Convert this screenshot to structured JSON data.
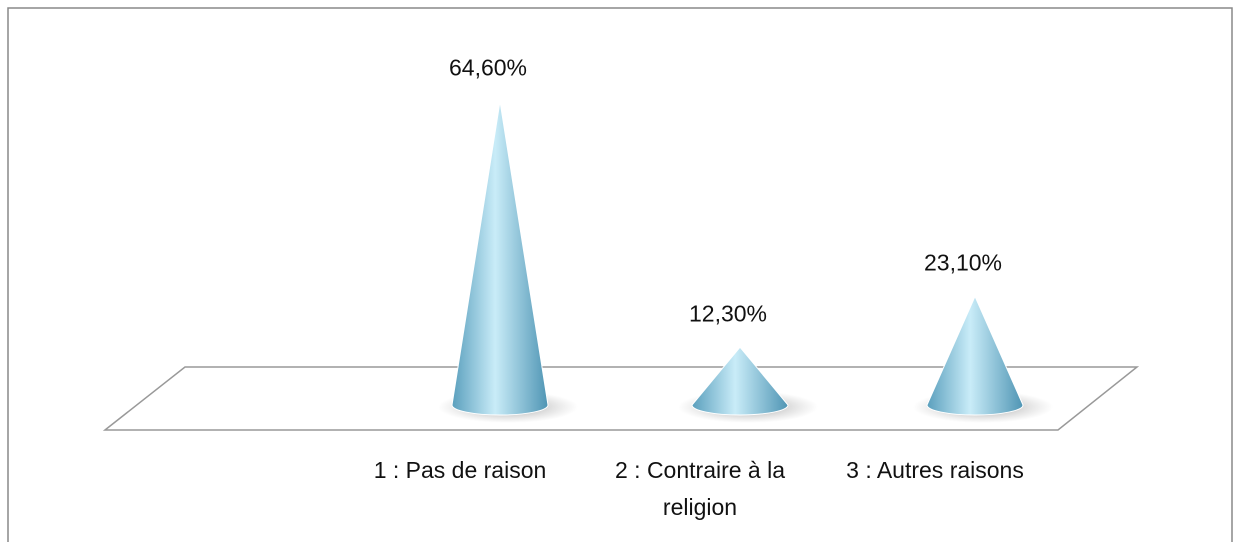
{
  "chart_data": {
    "type": "cone",
    "categories": [
      "1 : Pas de raison",
      "2 : Contraire à la religion",
      "3 : Autres raisons"
    ],
    "values": [
      64.6,
      12.3,
      23.1
    ],
    "value_labels": [
      "64,60%",
      "12,30%",
      "23,10%"
    ],
    "color": "#8ccbe2"
  }
}
